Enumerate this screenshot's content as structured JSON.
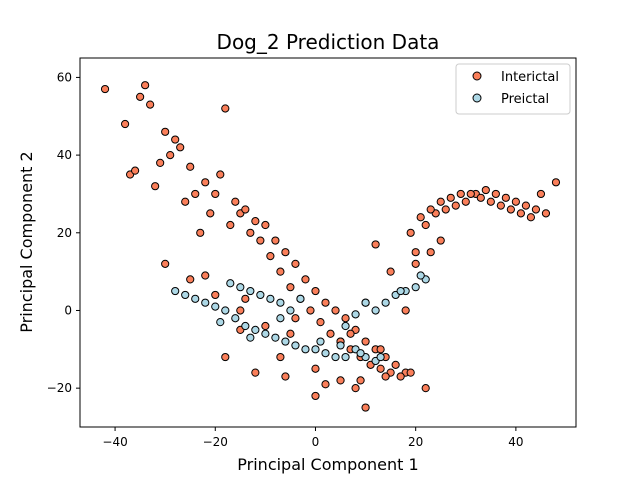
{
  "chart_data": {
    "type": "scatter",
    "title": "Dog_2 Prediction Data",
    "xlabel": "Principal Component 1",
    "ylabel": "Principal Component 2",
    "xlim": [
      -47,
      52
    ],
    "ylim": [
      -30,
      65
    ],
    "xticks": [
      -40,
      -20,
      0,
      20,
      40
    ],
    "yticks": [
      -20,
      0,
      20,
      40,
      60
    ],
    "xtick_labels": [
      "−40",
      "−20",
      "0",
      "20",
      "40"
    ],
    "ytick_labels": [
      "−20",
      "0",
      "20",
      "40",
      "60"
    ],
    "grid": false,
    "legend_position": "top-right",
    "series": [
      {
        "name": "Interictal",
        "color": "#fa7f5a",
        "edge_color": "#000000",
        "x": [
          -42,
          -38,
          -35,
          -34,
          -33,
          -30,
          -29,
          -28,
          -25,
          -22,
          -20,
          -19,
          -18,
          -16,
          -15,
          -14,
          -12,
          -10,
          -8,
          -6,
          -4,
          -2,
          0,
          2,
          4,
          6,
          8,
          10,
          12,
          14,
          16,
          18,
          20,
          22,
          24,
          26,
          28,
          30,
          32,
          34,
          36,
          38,
          40,
          42,
          44,
          46,
          48,
          -37,
          -31,
          -27,
          -24,
          -21,
          -17,
          -13,
          -11,
          -9,
          -7,
          -5,
          -3,
          -1,
          1,
          3,
          5,
          7,
          9,
          11,
          13,
          15,
          17,
          19,
          21,
          23,
          25,
          27,
          29,
          31,
          33,
          35,
          37,
          39,
          41,
          43,
          45,
          -36,
          -32,
          -26,
          -23,
          -15,
          -7,
          0,
          5,
          8,
          12,
          -30,
          -25,
          -20,
          -15,
          -10,
          -5,
          5,
          10,
          15,
          20,
          25,
          -18,
          -12,
          -6,
          2,
          9,
          14,
          19,
          23,
          -22,
          -14,
          -4,
          7,
          13,
          18,
          22,
          0,
          10
        ],
        "y": [
          57,
          48,
          55,
          58,
          53,
          46,
          40,
          44,
          37,
          33,
          30,
          35,
          52,
          28,
          25,
          26,
          23,
          22,
          18,
          15,
          12,
          8,
          5,
          2,
          0,
          -2,
          -5,
          -8,
          -10,
          -12,
          -14,
          -16,
          15,
          22,
          25,
          26,
          27,
          28,
          30,
          31,
          30,
          29,
          28,
          27,
          26,
          25,
          33,
          35,
          38,
          42,
          30,
          25,
          22,
          20,
          18,
          14,
          10,
          6,
          3,
          0,
          -3,
          -6,
          -8,
          -10,
          -12,
          -14,
          -15,
          -16,
          -17,
          20,
          24,
          26,
          28,
          29,
          30,
          30,
          29,
          28,
          27,
          26,
          25,
          24,
          30,
          36,
          32,
          28,
          20,
          -5,
          -12,
          -15,
          -18,
          -20,
          17,
          12,
          8,
          4,
          0,
          -4,
          -6,
          -8,
          2,
          10,
          12,
          18,
          -12,
          -16,
          -17,
          -19,
          -18,
          -17,
          -16,
          15,
          9,
          3,
          -2,
          -6,
          -10,
          0,
          -20,
          -22,
          -25
        ]
      },
      {
        "name": "Preictal",
        "color": "#add8e6",
        "edge_color": "#000000",
        "x": [
          -28,
          -26,
          -24,
          -22,
          -20,
          -18,
          -16,
          -14,
          -12,
          -10,
          -8,
          -6,
          -4,
          -2,
          0,
          2,
          4,
          6,
          8,
          10,
          12,
          -17,
          -15,
          -13,
          -11,
          -9,
          -7,
          -5,
          6,
          8,
          10,
          12,
          14,
          16,
          18,
          20,
          22,
          -19,
          -13,
          -7,
          -3,
          1,
          5,
          9,
          13,
          17,
          21
        ],
        "y": [
          5,
          4,
          3,
          2,
          1,
          0,
          -2,
          -4,
          -5,
          -6,
          -7,
          -8,
          -9,
          -10,
          -10,
          -11,
          -12,
          -12,
          -10,
          -12,
          -13,
          7,
          6,
          5,
          4,
          3,
          2,
          0,
          -4,
          -1,
          2,
          0,
          2,
          4,
          5,
          6,
          8,
          -3,
          -7,
          -2,
          3,
          -8,
          -9,
          -11,
          -12,
          5,
          9
        ]
      }
    ]
  }
}
